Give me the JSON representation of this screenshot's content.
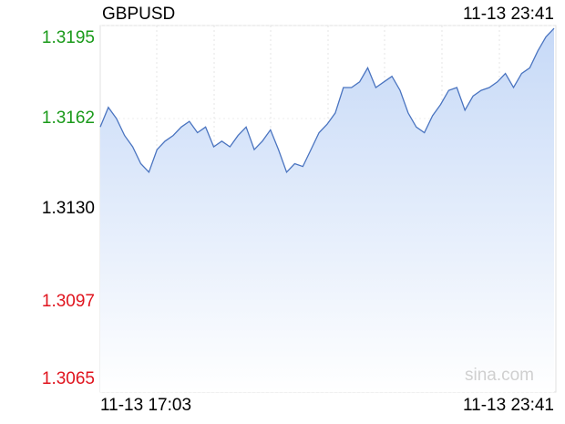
{
  "chart_data": {
    "type": "area",
    "title": "GBPUSD",
    "timestamp": "11-13 23:41",
    "x_labels": [
      "11-13 17:03",
      "11-13 23:41"
    ],
    "values": [
      1.3159,
      1.3166,
      1.3162,
      1.3156,
      1.3152,
      1.3146,
      1.3143,
      1.3151,
      1.3154,
      1.3156,
      1.3159,
      1.3161,
      1.3157,
      1.3159,
      1.3152,
      1.3154,
      1.3152,
      1.3156,
      1.3159,
      1.3151,
      1.3154,
      1.3158,
      1.3151,
      1.3143,
      1.3146,
      1.3145,
      1.3151,
      1.3157,
      1.316,
      1.3164,
      1.3173,
      1.3173,
      1.3175,
      1.318,
      1.3173,
      1.3175,
      1.3177,
      1.3172,
      1.3164,
      1.3159,
      1.3157,
      1.3163,
      1.3167,
      1.3172,
      1.3173,
      1.3165,
      1.317,
      1.3172,
      1.3173,
      1.3175,
      1.3178,
      1.3173,
      1.3178,
      1.318,
      1.3186,
      1.3191,
      1.3194
    ],
    "color": "#4a74c0",
    "ylim": [
      1.3065,
      1.3195
    ],
    "yticks": [
      1.3065,
      1.3097,
      {
        "value": 1.313,
        "label": "1.3130"
      },
      1.3162,
      1.3195
    ],
    "baseline": 1.313,
    "up_color": "#1a9a1a",
    "down_color": "#e0141e",
    "base_color": "#000000",
    "grid": true,
    "watermark": "sina.com"
  }
}
